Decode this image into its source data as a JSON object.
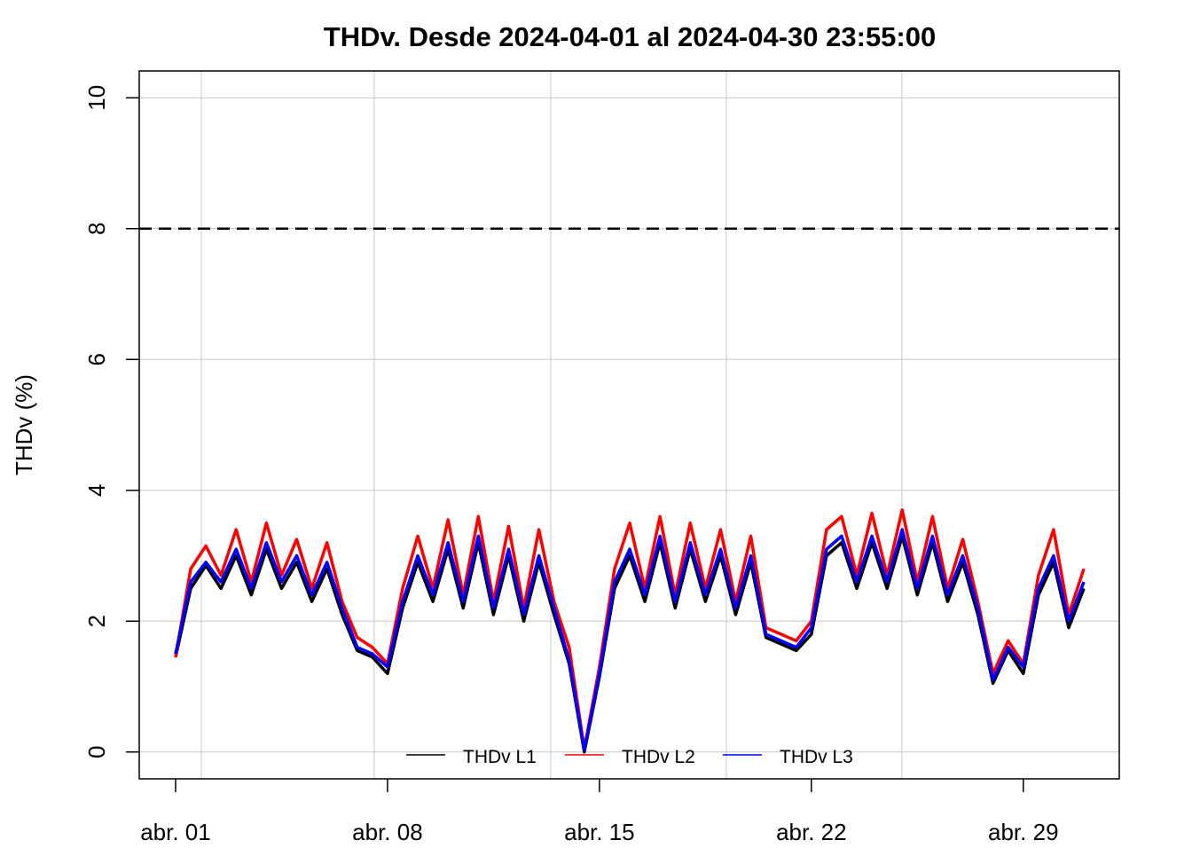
{
  "chart_data": {
    "type": "line",
    "title": "THDv. Desde  2024-04-01  al  2024-04-30 23:55:00",
    "y_label": "THDv (%)",
    "x": [
      1,
      1.5,
      2,
      2.5,
      3,
      3.5,
      4,
      4.5,
      5,
      5.5,
      6,
      6.5,
      7,
      7.5,
      8,
      8.5,
      9,
      9.5,
      10,
      10.5,
      11,
      11.5,
      12,
      12.5,
      13,
      13.5,
      14,
      14.5,
      15,
      15.5,
      16,
      16.5,
      17,
      17.5,
      18,
      18.5,
      19,
      19.5,
      20,
      20.5,
      21,
      21.5,
      22,
      22.5,
      23,
      23.5,
      24,
      24.5,
      25,
      25.5,
      26,
      26.5,
      27,
      27.5,
      28,
      28.5,
      29,
      29.5,
      30,
      30.5,
      31
    ],
    "series": [
      {
        "name": "THDv L1",
        "color": "#000000",
        "values": [
          1.45,
          2.5,
          2.85,
          2.5,
          3.0,
          2.4,
          3.1,
          2.5,
          2.9,
          2.3,
          2.8,
          2.1,
          1.55,
          1.45,
          1.2,
          2.2,
          2.9,
          2.3,
          3.1,
          2.2,
          3.2,
          2.1,
          3.0,
          2.0,
          2.9,
          2.1,
          1.35,
          0.0,
          1.15,
          2.5,
          3.0,
          2.3,
          3.2,
          2.2,
          3.1,
          2.3,
          3.0,
          2.1,
          2.9,
          1.75,
          1.65,
          1.55,
          1.8,
          3.0,
          3.2,
          2.5,
          3.2,
          2.5,
          3.3,
          2.4,
          3.2,
          2.3,
          2.9,
          2.1,
          1.05,
          1.55,
          1.2,
          2.4,
          2.9,
          1.9,
          2.5
        ]
      },
      {
        "name": "THDv L2",
        "color": "#ff0000",
        "values": [
          1.45,
          2.8,
          3.15,
          2.7,
          3.4,
          2.6,
          3.5,
          2.7,
          3.25,
          2.5,
          3.2,
          2.3,
          1.75,
          1.6,
          1.35,
          2.5,
          3.3,
          2.5,
          3.55,
          2.4,
          3.6,
          2.3,
          3.45,
          2.2,
          3.4,
          2.3,
          1.6,
          0.05,
          1.3,
          2.8,
          3.5,
          2.5,
          3.6,
          2.4,
          3.5,
          2.5,
          3.4,
          2.3,
          3.3,
          1.9,
          1.8,
          1.7,
          2.0,
          3.4,
          3.6,
          2.7,
          3.65,
          2.7,
          3.7,
          2.6,
          3.6,
          2.5,
          3.25,
          2.3,
          1.2,
          1.7,
          1.35,
          2.7,
          3.4,
          2.1,
          2.8
        ]
      },
      {
        "name": "THDv L3",
        "color": "#0000ff",
        "values": [
          1.5,
          2.6,
          2.9,
          2.6,
          3.1,
          2.5,
          3.2,
          2.6,
          3.0,
          2.4,
          2.9,
          2.2,
          1.6,
          1.5,
          1.3,
          2.3,
          3.0,
          2.4,
          3.2,
          2.3,
          3.3,
          2.2,
          3.1,
          2.1,
          3.0,
          2.2,
          1.4,
          0.03,
          1.2,
          2.6,
          3.1,
          2.4,
          3.3,
          2.3,
          3.2,
          2.4,
          3.1,
          2.2,
          3.0,
          1.8,
          1.7,
          1.6,
          1.9,
          3.1,
          3.3,
          2.6,
          3.3,
          2.6,
          3.4,
          2.5,
          3.3,
          2.4,
          3.0,
          2.2,
          1.1,
          1.6,
          1.3,
          2.5,
          3.0,
          2.0,
          2.6
        ]
      }
    ],
    "xlim": [
      -0.2,
      32.17
    ],
    "xticks": [
      {
        "value": 1,
        "label": "abr. 01"
      },
      {
        "value": 8,
        "label": "abr. 08"
      },
      {
        "value": 15,
        "label": "abr. 15"
      },
      {
        "value": 22,
        "label": "abr. 22"
      },
      {
        "value": 29,
        "label": "abr. 29"
      }
    ],
    "x_grid_lines": [
      1.85,
      7.56,
      13.39,
      19.19,
      24.99
    ],
    "ylim": [
      -0.41,
      10.41
    ],
    "yticks": [
      0,
      2,
      4,
      6,
      8,
      10
    ],
    "reference_line": 8,
    "grid": true,
    "legend": "bottom"
  }
}
